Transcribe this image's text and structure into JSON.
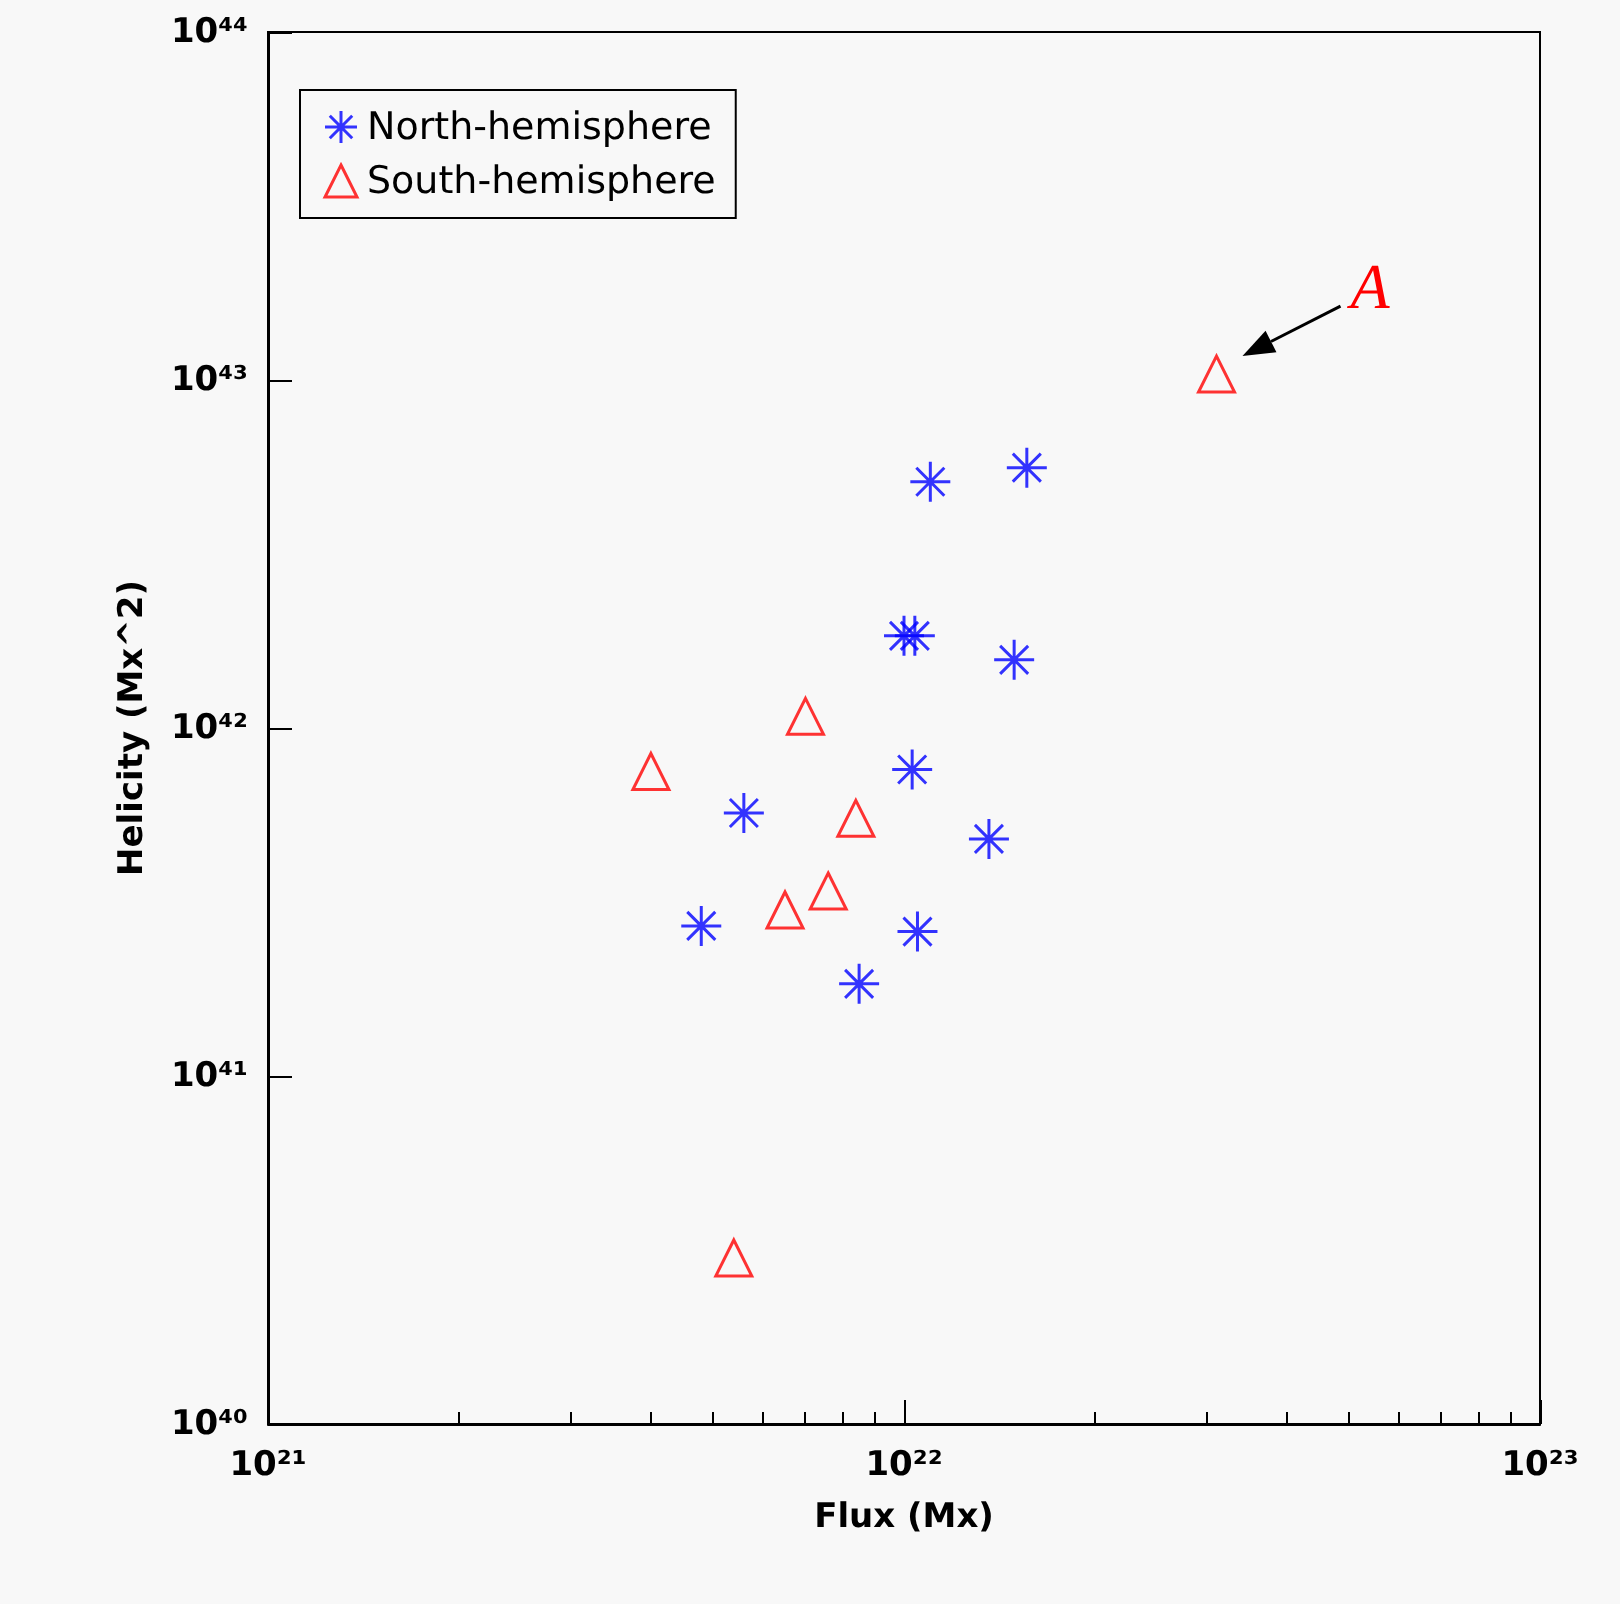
{
  "chart_data": {
    "type": "scatter",
    "xlabel": "Flux (Mx)",
    "ylabel": "Helicity (Mx^2)",
    "log": "xy",
    "grid": false,
    "legend": "top left",
    "xlim": [
      1e+21,
      1e+23
    ],
    "xticks": [
      {
        "value": 1e+21,
        "label": "10²¹"
      },
      {
        "value": 1e+22,
        "label": "10²²"
      },
      {
        "value": 1e+23,
        "label": "10²³"
      }
    ],
    "ylim": [
      1e+40,
      1e+44
    ],
    "yticks": [
      {
        "value": 1e+40,
        "label": "10⁴⁰"
      },
      {
        "value": 1e+41,
        "label": "10⁴¹"
      },
      {
        "value": 1e+42,
        "label": "10⁴²"
      },
      {
        "value": 1e+43,
        "label": "10⁴³"
      },
      {
        "value": 1e+44,
        "label": "10⁴⁴"
      }
    ],
    "series": [
      {
        "name": "North-hemisphere",
        "color": "#0000ff",
        "marker": "cross",
        "x": [
          1.1e+22,
          1.56e+22,
          1e+22,
          1.04e+22,
          1.49e+22,
          1.03e+22,
          5.6e+21,
          1.36e+22,
          4.8e+21,
          1.05e+22,
          8.5e+21
        ],
        "values": [
          5.1e+42,
          5.6e+42,
          1.84e+42,
          1.84e+42,
          1.57e+42,
          7.6e+41,
          5.7e+41,
          4.8e+41,
          2.7e+41,
          2.6e+41,
          1.84e+41
        ]
      },
      {
        "name": "South-hemisphere",
        "color": "#ff0000",
        "marker": "triangle",
        "x": [
          3.1e+22,
          7e+21,
          4e+21,
          8.4e+21,
          7.6e+21,
          6.5e+21,
          5.4e+21
        ],
        "values": [
          1.04e+43,
          1.08e+42,
          7.5e+41,
          5.5e+41,
          3.4e+41,
          3e+41,
          3e+40
        ]
      }
    ],
    "annotations": [
      {
        "text": "A",
        "x": 3.1e+22,
        "y": 1.04e+43
      }
    ]
  }
}
